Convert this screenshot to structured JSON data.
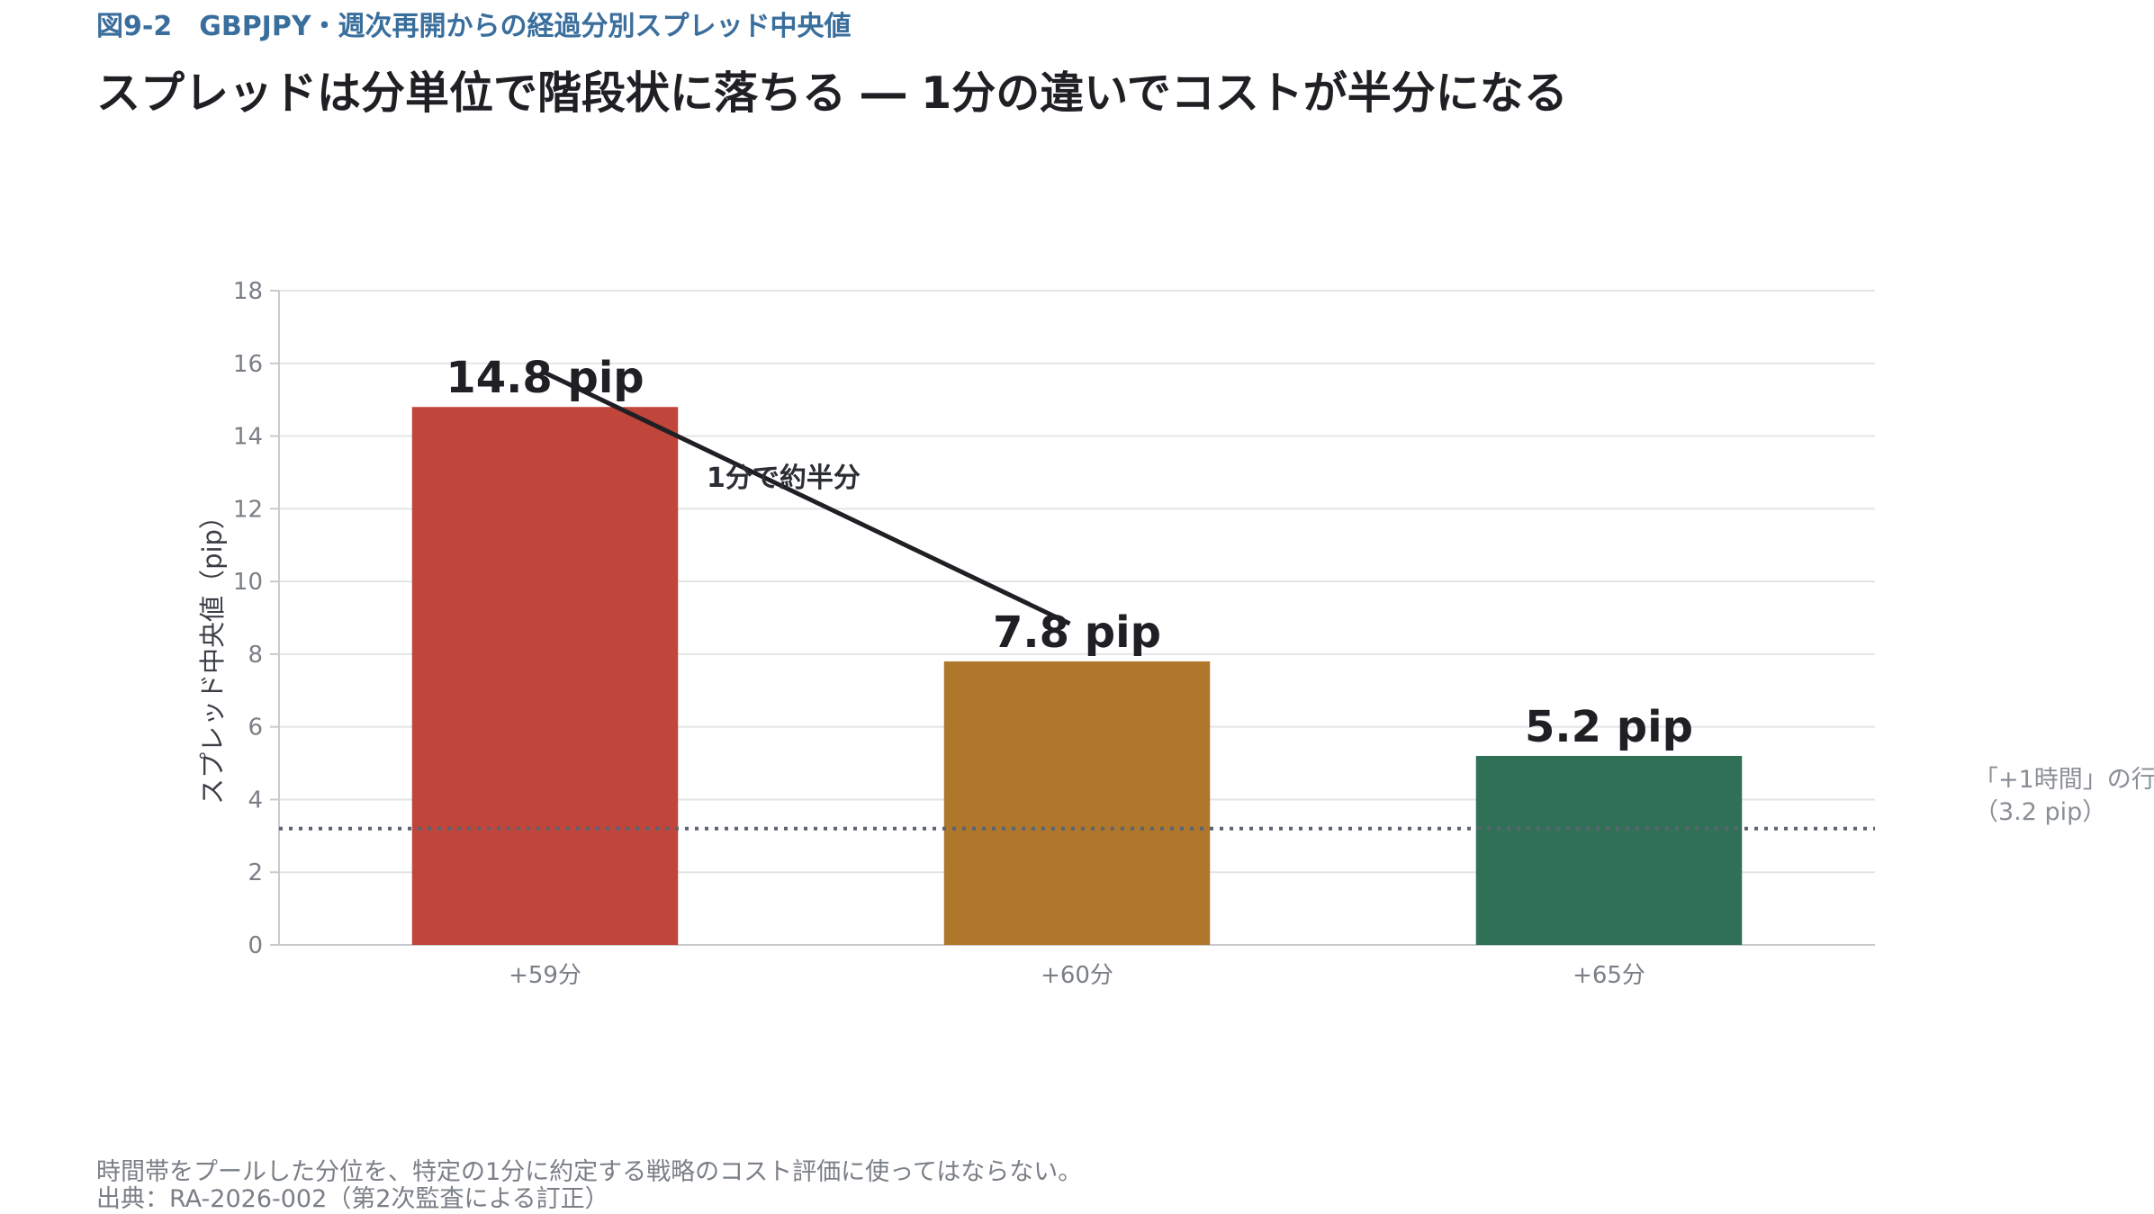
{
  "header": {
    "figure_label": "図9-2　GBPJPY・週次再開からの経過分別スプレッド中央値",
    "headline": "スプレッドは分単位で階段状に落ちる ― 1分の違いでコストが半分になる"
  },
  "chart_data": {
    "type": "bar",
    "categories": [
      "+59分",
      "+60分",
      "+65分"
    ],
    "values": [
      14.8,
      7.8,
      5.2
    ],
    "value_labels": [
      "14.8 pip",
      "7.8 pip",
      "5.2 pip"
    ],
    "colors": [
      "#c0453b",
      "#ae772b",
      "#2f7057"
    ],
    "ylabel": "スプレッド中央値（pip）",
    "xlabel": "",
    "ylim": [
      0,
      18
    ],
    "yticks": [
      0,
      2,
      4,
      6,
      8,
      10,
      12,
      14,
      16,
      18
    ],
    "grid": true,
    "reference_line": {
      "value": 3.2,
      "style": "dotted",
      "color": "#5b6470",
      "label_line1": "「+1時間」の行",
      "label_line2": "（3.2 pip）"
    },
    "annotation": {
      "text": "1分で約半分",
      "from_category": "+59分",
      "to_category": "+60分"
    }
  },
  "footer": {
    "note": "時間帯をプールした分位を、特定の1分に約定する戦略のコスト評価に使ってはならない。",
    "source": "出典：RA-2026-002（第2次監査による訂正）"
  }
}
